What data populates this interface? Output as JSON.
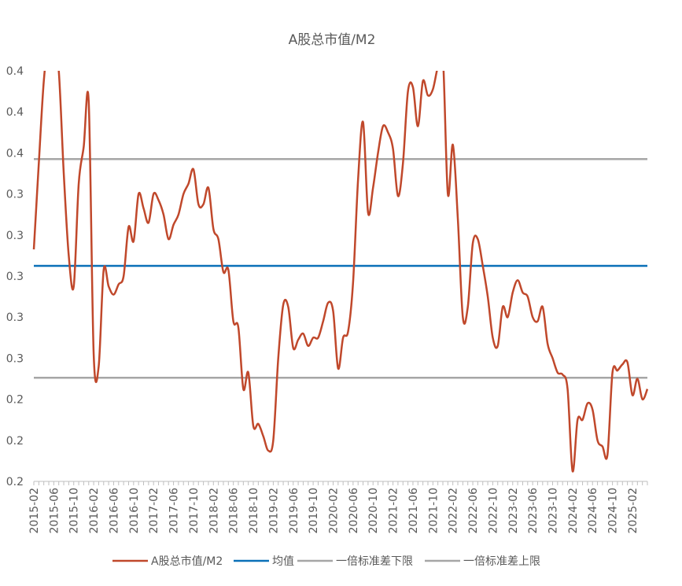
{
  "chart_data": {
    "type": "line",
    "title": "A股总市值/M2",
    "y_tick_labels": [
      "0.4",
      "0.4",
      "0.4",
      "0.3",
      "0.3",
      "0.3",
      "0.3",
      "0.3",
      "0.2",
      "0.2",
      "0.2"
    ],
    "x_tick_labels": [
      "2015-02",
      "2015-06",
      "2015-10",
      "2016-02",
      "2016-06",
      "2016-10",
      "2017-02",
      "2017-06",
      "2017-10",
      "2018-02",
      "2018-06",
      "2018-10",
      "2019-02",
      "2019-06",
      "2019-10",
      "2020-02",
      "2020-06",
      "2020-10",
      "2021-02",
      "2021-06",
      "2021-10",
      "2022-02",
      "2022-06",
      "2022-10",
      "2023-02",
      "2023-06",
      "2023-10",
      "2024-02",
      "2024-06",
      "2024-10",
      "2025-02"
    ],
    "ylim": [
      0.2,
      0.4
    ],
    "x_range": [
      "2015-02",
      "2025-05"
    ],
    "grid": false,
    "legend_position": "bottom",
    "series": [
      {
        "name": "A股总市值/M2",
        "color": "#c0482b",
        "points": [
          [
            "2015-02",
            0.313
          ],
          [
            "2015-03",
            0.355
          ],
          [
            "2015-04",
            0.395
          ],
          [
            "2015-05",
            0.415
          ],
          [
            "2015-06",
            0.413
          ],
          [
            "2015-07",
            0.4
          ],
          [
            "2015-08",
            0.35
          ],
          [
            "2015-09",
            0.31
          ],
          [
            "2015-10",
            0.295
          ],
          [
            "2015-11",
            0.345
          ],
          [
            "2015-12",
            0.363
          ],
          [
            "2016-01",
            0.385
          ],
          [
            "2016-02",
            0.262
          ],
          [
            "2016-03",
            0.256
          ],
          [
            "2016-04",
            0.303
          ],
          [
            "2016-05",
            0.295
          ],
          [
            "2016-06",
            0.291
          ],
          [
            "2016-07",
            0.296
          ],
          [
            "2016-08",
            0.3
          ],
          [
            "2016-09",
            0.324
          ],
          [
            "2016-10",
            0.317
          ],
          [
            "2016-11",
            0.34
          ],
          [
            "2016-12",
            0.333
          ],
          [
            "2017-01",
            0.326
          ],
          [
            "2017-02",
            0.34
          ],
          [
            "2017-03",
            0.337
          ],
          [
            "2017-04",
            0.33
          ],
          [
            "2017-05",
            0.318
          ],
          [
            "2017-06",
            0.325
          ],
          [
            "2017-07",
            0.33
          ],
          [
            "2017-08",
            0.34
          ],
          [
            "2017-09",
            0.345
          ],
          [
            "2017-10",
            0.352
          ],
          [
            "2017-11",
            0.335
          ],
          [
            "2017-12",
            0.335
          ],
          [
            "2018-01",
            0.343
          ],
          [
            "2018-02",
            0.323
          ],
          [
            "2018-03",
            0.318
          ],
          [
            "2018-04",
            0.302
          ],
          [
            "2018-05",
            0.303
          ],
          [
            "2018-06",
            0.278
          ],
          [
            "2018-07",
            0.275
          ],
          [
            "2018-08",
            0.245
          ],
          [
            "2018-09",
            0.253
          ],
          [
            "2018-10",
            0.227
          ],
          [
            "2018-11",
            0.228
          ],
          [
            "2018-12",
            0.222
          ],
          [
            "2019-01",
            0.215
          ],
          [
            "2019-02",
            0.22
          ],
          [
            "2019-03",
            0.26
          ],
          [
            "2019-04",
            0.286
          ],
          [
            "2019-05",
            0.285
          ],
          [
            "2019-06",
            0.265
          ],
          [
            "2019-07",
            0.269
          ],
          [
            "2019-08",
            0.272
          ],
          [
            "2019-09",
            0.266
          ],
          [
            "2019-10",
            0.27
          ],
          [
            "2019-11",
            0.27
          ],
          [
            "2019-12",
            0.278
          ],
          [
            "2020-01",
            0.287
          ],
          [
            "2020-02",
            0.283
          ],
          [
            "2020-03",
            0.255
          ],
          [
            "2020-04",
            0.27
          ],
          [
            "2020-05",
            0.273
          ],
          [
            "2020-06",
            0.297
          ],
          [
            "2020-07",
            0.347
          ],
          [
            "2020-08",
            0.375
          ],
          [
            "2020-09",
            0.331
          ],
          [
            "2020-10",
            0.343
          ],
          [
            "2020-11",
            0.36
          ],
          [
            "2020-12",
            0.373
          ],
          [
            "2021-01",
            0.37
          ],
          [
            "2021-02",
            0.362
          ],
          [
            "2021-03",
            0.339
          ],
          [
            "2021-04",
            0.355
          ],
          [
            "2021-05",
            0.39
          ],
          [
            "2021-06",
            0.392
          ],
          [
            "2021-07",
            0.373
          ],
          [
            "2021-08",
            0.395
          ],
          [
            "2021-09",
            0.388
          ],
          [
            "2021-10",
            0.391
          ],
          [
            "2021-11",
            0.402
          ],
          [
            "2021-12",
            0.407
          ],
          [
            "2022-01",
            0.34
          ],
          [
            "2022-02",
            0.364
          ],
          [
            "2022-03",
            0.328
          ],
          [
            "2022-04",
            0.28
          ],
          [
            "2022-05",
            0.285
          ],
          [
            "2022-06",
            0.316
          ],
          [
            "2022-07",
            0.318
          ],
          [
            "2022-08",
            0.305
          ],
          [
            "2022-09",
            0.29
          ],
          [
            "2022-10",
            0.27
          ],
          [
            "2022-11",
            0.266
          ],
          [
            "2022-12",
            0.285
          ],
          [
            "2023-01",
            0.28
          ],
          [
            "2023-02",
            0.292
          ],
          [
            "2023-03",
            0.298
          ],
          [
            "2023-04",
            0.292
          ],
          [
            "2023-05",
            0.29
          ],
          [
            "2023-06",
            0.28
          ],
          [
            "2023-07",
            0.278
          ],
          [
            "2023-08",
            0.285
          ],
          [
            "2023-09",
            0.267
          ],
          [
            "2023-10",
            0.26
          ],
          [
            "2023-11",
            0.253
          ],
          [
            "2023-12",
            0.252
          ],
          [
            "2024-01",
            0.245
          ],
          [
            "2024-02",
            0.205
          ],
          [
            "2024-03",
            0.23
          ],
          [
            "2024-04",
            0.23
          ],
          [
            "2024-05",
            0.238
          ],
          [
            "2024-06",
            0.235
          ],
          [
            "2024-07",
            0.22
          ],
          [
            "2024-08",
            0.217
          ],
          [
            "2024-09",
            0.213
          ],
          [
            "2024-10",
            0.253
          ],
          [
            "2024-11",
            0.254
          ],
          [
            "2024-12",
            0.257
          ],
          [
            "2025-01",
            0.258
          ],
          [
            "2025-02",
            0.242
          ],
          [
            "2025-03",
            0.25
          ],
          [
            "2025-04",
            0.24
          ],
          [
            "2025-05",
            0.245
          ]
        ]
      },
      {
        "name": "均值",
        "color": "#0a70b8",
        "value": 0.305
      },
      {
        "name": "一倍标准差下限",
        "color": "#a6a6a6",
        "value": 0.2505
      },
      {
        "name": "一倍标准差上限",
        "color": "#a6a6a6",
        "value": 0.357
      }
    ]
  }
}
